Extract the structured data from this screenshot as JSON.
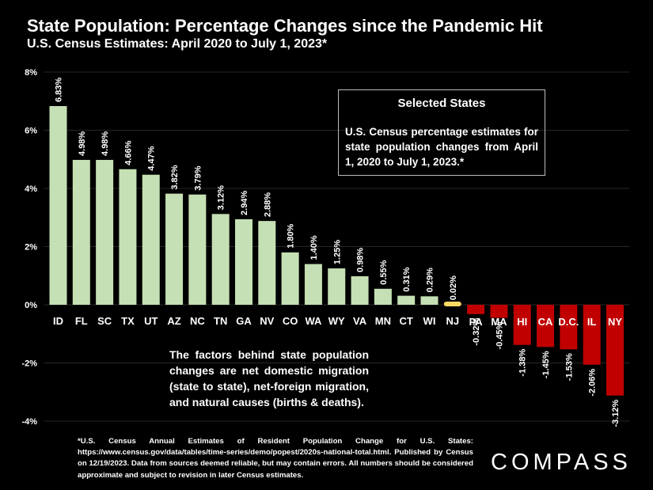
{
  "header": {
    "title": "State Population: Percentage Changes since the Pandemic Hit",
    "subtitle": "U.S. Census Estimates: April 2020 to July 1, 2023*"
  },
  "callout": {
    "title": "Selected States",
    "body": "U.S. Census percentage estimates for state population changes from April 1, 2020 to July 1, 2023.*"
  },
  "factors_note": "The factors behind state population changes are net domestic migration (state to state), net-foreign migration, and natural causes (births & deaths).",
  "footnote": "*U.S. Census Annual Estimates of Resident Population Change for U.S. States: https://www.census.gov/data/tables/time-series/demo/popest/2020s-national-total.html. Published by Census on 12/19/2023. Data from sources deemed reliable, but may contain errors. All numbers should be considered approximate and subject to revision in later Census estimates.",
  "logo": "COMPASS",
  "colors": {
    "background": "#000000",
    "positive": "#c5e0b4",
    "neutral": "#ffd966",
    "negative": "#c00000",
    "gridline": "#262626",
    "text": "#ffffff"
  },
  "chart_data": {
    "type": "bar",
    "title": "State Population: Percentage Changes since the Pandemic Hit",
    "subtitle": "U.S. Census Estimates: April 2020 to July 1, 2023*",
    "xlabel": "",
    "ylabel": "",
    "ylim": [
      -4,
      8
    ],
    "yticks": [
      -4,
      -2,
      0,
      2,
      4,
      6,
      8
    ],
    "ytick_labels": [
      "-4%",
      "-2%",
      "0%",
      "2%",
      "4%",
      "6%",
      "8%"
    ],
    "grid": true,
    "categories": [
      "ID",
      "FL",
      "SC",
      "TX",
      "UT",
      "AZ",
      "NC",
      "TN",
      "GA",
      "NV",
      "CO",
      "WA",
      "WY",
      "VA",
      "MN",
      "CT",
      "WI",
      "NJ",
      "PA",
      "MA",
      "HI",
      "CA",
      "D.C.",
      "IL",
      "NY"
    ],
    "values": [
      6.83,
      4.98,
      4.98,
      4.66,
      4.47,
      3.82,
      3.79,
      3.12,
      2.94,
      2.88,
      1.8,
      1.4,
      1.25,
      0.98,
      0.55,
      0.31,
      0.29,
      0.02,
      -0.32,
      -0.45,
      -1.38,
      -1.45,
      -1.53,
      -2.06,
      -3.12
    ],
    "data_labels": [
      "6.83%",
      "4.98%",
      "4.98%",
      "4.66%",
      "4.47%",
      "3.82%",
      "3.79%",
      "3.12%",
      "2.94%",
      "2.88%",
      "1.80%",
      "1.40%",
      "1.25%",
      "0.98%",
      "0.55%",
      "0.31%",
      "0.29%",
      "0.02%",
      "-0.32%",
      "-0.45%",
      "-1.38%",
      "-1.45%",
      "-1.53%",
      "-2.06%",
      "-3.12%"
    ]
  }
}
